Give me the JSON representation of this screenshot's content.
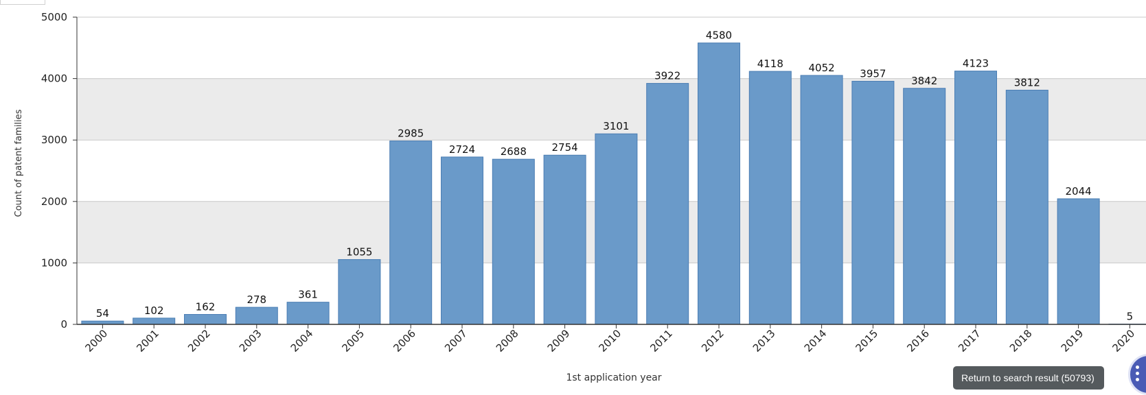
{
  "chart_data": {
    "type": "bar",
    "categories": [
      "2000",
      "2001",
      "2002",
      "2003",
      "2004",
      "2005",
      "2006",
      "2007",
      "2008",
      "2009",
      "2010",
      "2011",
      "2012",
      "2013",
      "2014",
      "2015",
      "2016",
      "2017",
      "2018",
      "2019",
      "2020"
    ],
    "values": [
      54,
      102,
      162,
      278,
      361,
      1055,
      2985,
      2724,
      2688,
      2754,
      3101,
      3922,
      4580,
      4118,
      4052,
      3957,
      3842,
      4123,
      3812,
      2044,
      5
    ],
    "xlabel": "1st application year",
    "ylabel": "Count of patent families",
    "ylim": [
      0,
      5000
    ],
    "yticks": [
      "0",
      "1000",
      "2000",
      "3000",
      "4000",
      "5000"
    ],
    "bar_color": "#6a9ac9",
    "bar_border": "#4a7db3",
    "band_color": "#ebebeb",
    "grid": true
  },
  "return_button": {
    "label": "Return to search result (50793)"
  },
  "fab": {
    "icon": "grid-dots-icon"
  }
}
